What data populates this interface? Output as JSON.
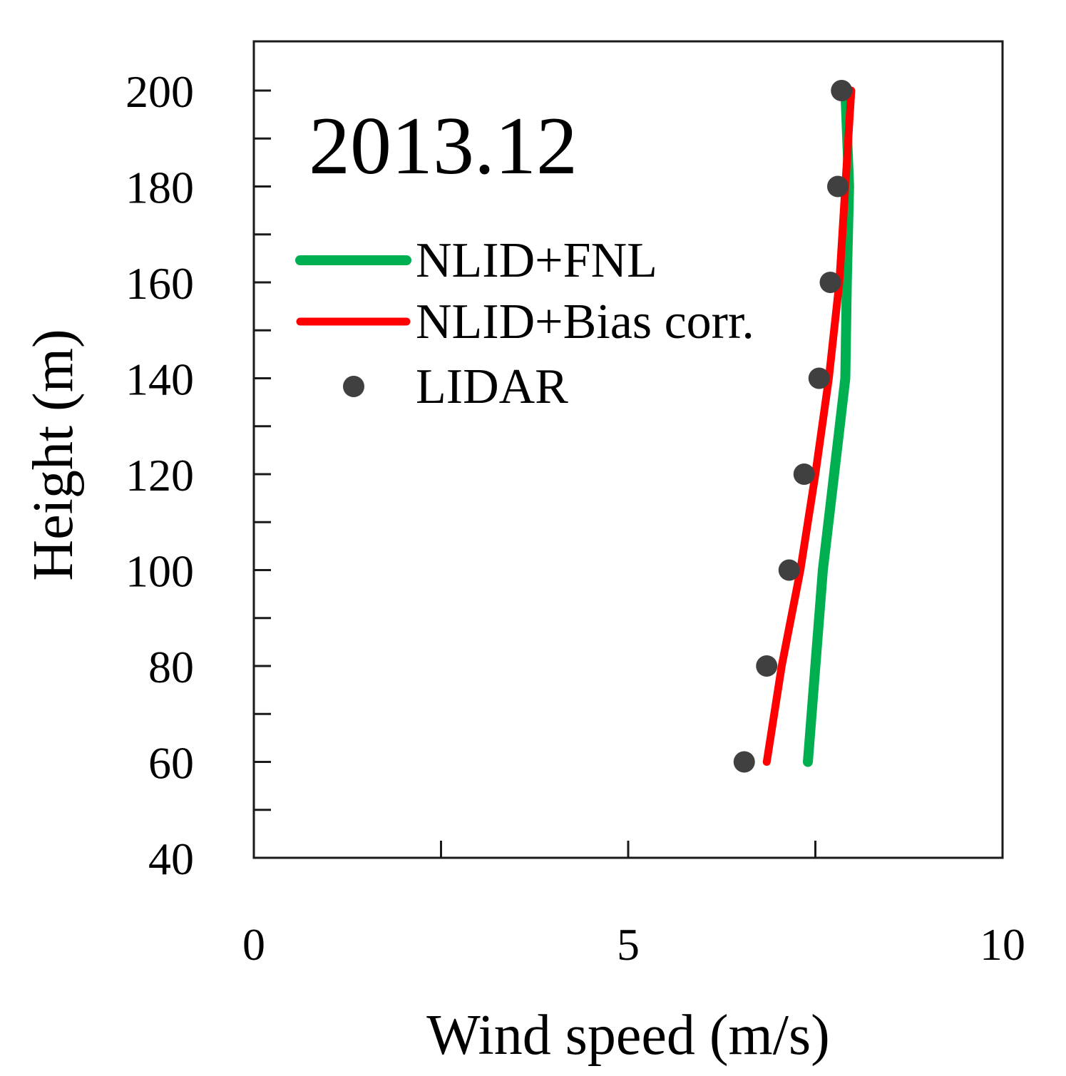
{
  "chart_data": {
    "type": "line",
    "title": "2013.12",
    "xlabel": "Wind speed (m/s)",
    "ylabel": "Height (m)",
    "xlim": [
      0,
      10
    ],
    "ylim": [
      40,
      210
    ],
    "x_ticks": [
      0,
      5,
      10
    ],
    "x_minor_ticks": [
      2.5,
      7.5
    ],
    "y_ticks": [
      40,
      60,
      80,
      100,
      120,
      140,
      160,
      180,
      200
    ],
    "y_minor_ticks": [
      50,
      70,
      90,
      110,
      130,
      150,
      170,
      190
    ],
    "grid": false,
    "legend_position": "upper-left",
    "series": [
      {
        "name": "NLID+FNL",
        "kind": "line",
        "color": "#00b050",
        "points": [
          [
            7.4,
            60
          ],
          [
            7.5,
            80
          ],
          [
            7.6,
            100
          ],
          [
            7.75,
            120
          ],
          [
            7.9,
            140
          ],
          [
            7.92,
            160
          ],
          [
            7.95,
            180
          ],
          [
            7.9,
            200
          ]
        ]
      },
      {
        "name": "NLID+Bias corr.",
        "kind": "line",
        "color": "#ff0000",
        "points": [
          [
            6.85,
            60
          ],
          [
            7.05,
            80
          ],
          [
            7.3,
            100
          ],
          [
            7.5,
            120
          ],
          [
            7.68,
            140
          ],
          [
            7.82,
            160
          ],
          [
            7.9,
            180
          ],
          [
            7.98,
            200
          ]
        ]
      },
      {
        "name": "LIDAR",
        "kind": "scatter",
        "color": "#404040",
        "points": [
          [
            6.55,
            60
          ],
          [
            6.85,
            80
          ],
          [
            7.15,
            100
          ],
          [
            7.35,
            120
          ],
          [
            7.55,
            140
          ],
          [
            7.7,
            160
          ],
          [
            7.8,
            180
          ],
          [
            7.85,
            200
          ]
        ]
      }
    ]
  }
}
